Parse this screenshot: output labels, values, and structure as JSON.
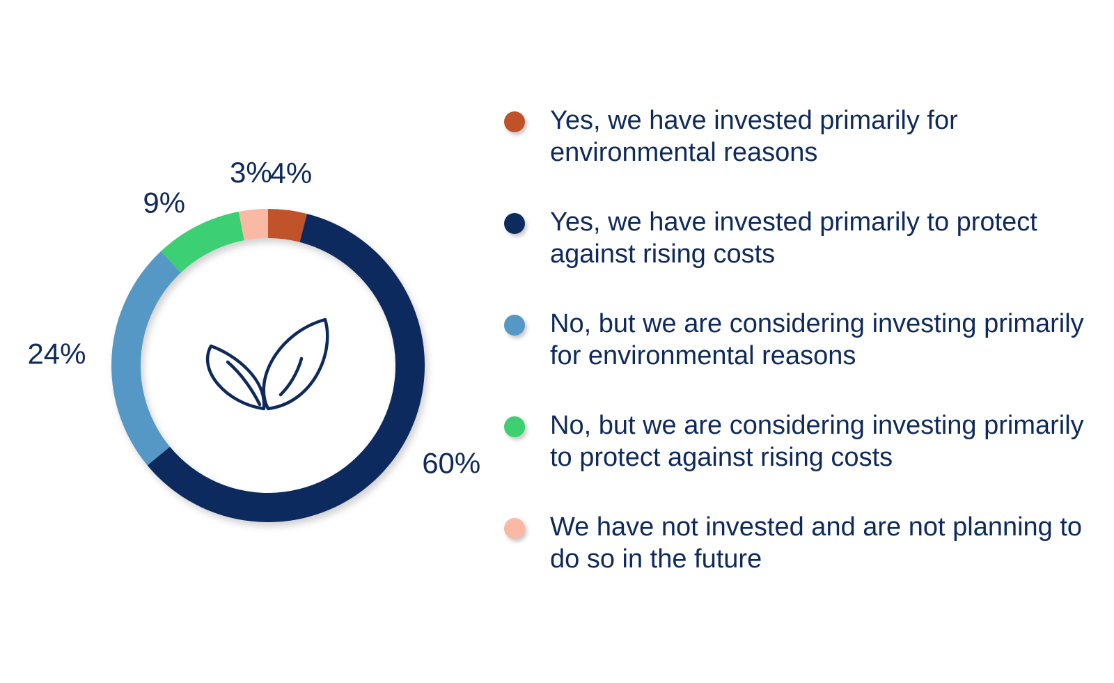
{
  "chart_data": {
    "type": "pie",
    "variant": "donut",
    "title": "",
    "center_icon": "leaf-icon",
    "slices": [
      {
        "label": "Yes, we have invested primarily for environmental reasons",
        "value": 4,
        "value_label": "4%",
        "color": "#c0522a"
      },
      {
        "label": "Yes, we have invested primarily to protect against rising costs",
        "value": 60,
        "value_label": "60%",
        "color": "#0d2c5e"
      },
      {
        "label": "No, but we are considering investing primarily for environmental reasons",
        "value": 24,
        "value_label": "24%",
        "color": "#5598c6"
      },
      {
        "label": "No, but we are considering investing primarily to protect against rising costs",
        "value": 9,
        "value_label": "9%",
        "color": "#3ecf73"
      },
      {
        "label": "We have not invested and are not planning to do so in the future",
        "value": 3,
        "value_label": "3%",
        "color": "#f9b9a4"
      }
    ],
    "legend_position": "right"
  }
}
